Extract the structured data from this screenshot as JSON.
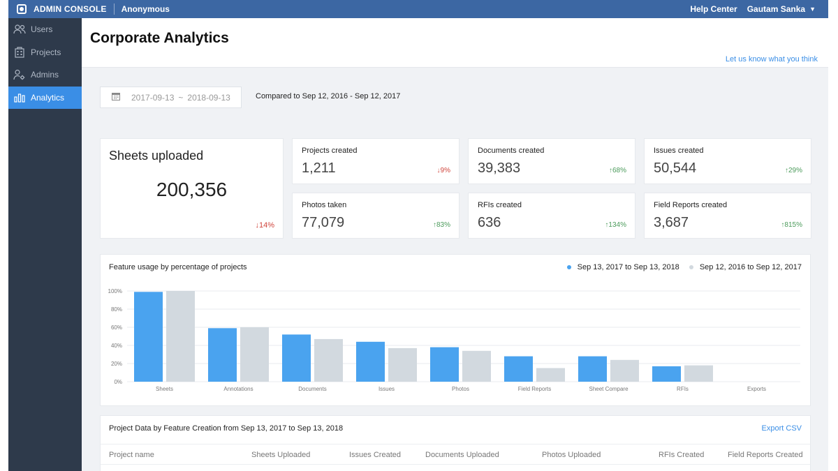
{
  "topbar": {
    "app_name": "ADMIN CONSOLE",
    "tenant": "Anonymous",
    "help": "Help Center",
    "user": "Gautam Sanka",
    "caret": "▼"
  },
  "sidebar": {
    "items": [
      {
        "label": "Users",
        "icon": "users-icon"
      },
      {
        "label": "Projects",
        "icon": "building-icon"
      },
      {
        "label": "Admins",
        "icon": "admin-gear-icon"
      },
      {
        "label": "Analytics",
        "icon": "bar-chart-icon",
        "active": true
      }
    ]
  },
  "header": {
    "title": "Corporate Analytics",
    "feedback": "Let us know what you think"
  },
  "date_range": {
    "start": "2017-09-13",
    "sep": "~",
    "end": "2018-09-13",
    "compared": "Compared to Sep 12, 2016 - Sep 12, 2017"
  },
  "summary": {
    "big": {
      "label": "Sheets uploaded",
      "value": "200,356",
      "change": "↓14%",
      "direction": "down"
    },
    "metrics": [
      {
        "label": "Projects created",
        "value": "1,211",
        "change": "↓9%",
        "direction": "down"
      },
      {
        "label": "Documents created",
        "value": "39,383",
        "change": "↑68%",
        "direction": "up"
      },
      {
        "label": "Issues created",
        "value": "50,544",
        "change": "↑29%",
        "direction": "up"
      },
      {
        "label": "Photos taken",
        "value": "77,079",
        "change": "↑83%",
        "direction": "up"
      },
      {
        "label": "RFIs created",
        "value": "636",
        "change": "↑134%",
        "direction": "up"
      },
      {
        "label": "Field Reports created",
        "value": "3,687",
        "change": "↑815%",
        "direction": "up"
      }
    ]
  },
  "chart_data": {
    "type": "bar",
    "title": "Feature usage by percentage of projects",
    "xlabel": "",
    "ylabel": "",
    "ylim": [
      0,
      100
    ],
    "yticks": [
      "0%",
      "20%",
      "40%",
      "60%",
      "80%",
      "100%"
    ],
    "grid": true,
    "legend_position": "top-right",
    "categories": [
      "Sheets",
      "Annotations",
      "Documents",
      "Issues",
      "Photos",
      "Field Reports",
      "Sheet Compare",
      "RFIs",
      "Exports"
    ],
    "series": [
      {
        "name": "Sep 13, 2017 to Sep 13, 2018",
        "color": "#4aa3ef",
        "values": [
          99,
          59,
          52,
          44,
          38,
          28,
          28,
          17,
          0
        ]
      },
      {
        "name": "Sep 12, 2016 to Sep 12, 2017",
        "color": "#d2d9df",
        "values": [
          100,
          60,
          47,
          37,
          34,
          15,
          24,
          18,
          0
        ]
      }
    ]
  },
  "table": {
    "title": "Project Data by Feature Creation from Sep 13, 2017 to Sep 13, 2018",
    "export": "Export CSV",
    "columns": [
      "Project name",
      "Sheets Uploaded",
      "Issues Created",
      "Documents Uploaded",
      "Photos Uploaded",
      "RFIs Created",
      "Field Reports Created"
    ]
  },
  "colors": {
    "topbar": "#3c67a3",
    "sidebar": "#2e3a4b",
    "accent": "#3a8ee6",
    "up": "#4a9a5a",
    "down": "#d0453c"
  }
}
